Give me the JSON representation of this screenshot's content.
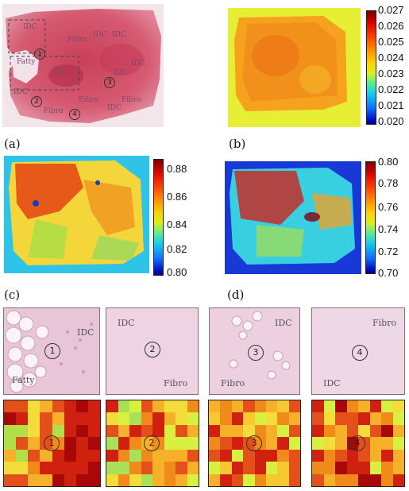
{
  "panels": {
    "a": {
      "label": "(a)"
    },
    "b": {
      "label": "(b)"
    },
    "c": {
      "label": "(c)"
    },
    "d": {
      "label": "(d)"
    }
  },
  "tissue_photo": {
    "annotations": [
      "IDC",
      "Fibro",
      "IDC",
      "Fatty",
      "IDC",
      "IDC",
      "IDC",
      "IDC",
      "Fibro",
      "IDC",
      "Fibro",
      "Fibro",
      "IDC"
    ],
    "region_markers": [
      "1",
      "2",
      "3",
      "4"
    ]
  },
  "colorbars": {
    "b": {
      "ticks": [
        "0.027",
        "0.026",
        "0.025",
        "0.024",
        "0.023",
        "0.022",
        "0.021",
        "0.020"
      ]
    },
    "c": {
      "ticks": [
        "0.88",
        "0.86",
        "0.84",
        "0.82",
        "0.80"
      ]
    },
    "d": {
      "ticks": [
        "0.80",
        "0.78",
        "0.76",
        "0.74",
        "0.72",
        "0.70"
      ]
    }
  },
  "histology": [
    {
      "marker": "1",
      "labels": [
        "IDC",
        "Fatty"
      ]
    },
    {
      "marker": "2",
      "labels": [
        "IDC",
        "Fibro"
      ]
    },
    {
      "marker": "3",
      "labels": [
        "IDC",
        "Fibro"
      ]
    },
    {
      "marker": "4",
      "labels": [
        "Fibro",
        "IDC"
      ]
    }
  ],
  "heatmap_crops": [
    {
      "marker": "1"
    },
    {
      "marker": "2"
    },
    {
      "marker": "3"
    },
    {
      "marker": "4"
    }
  ]
}
